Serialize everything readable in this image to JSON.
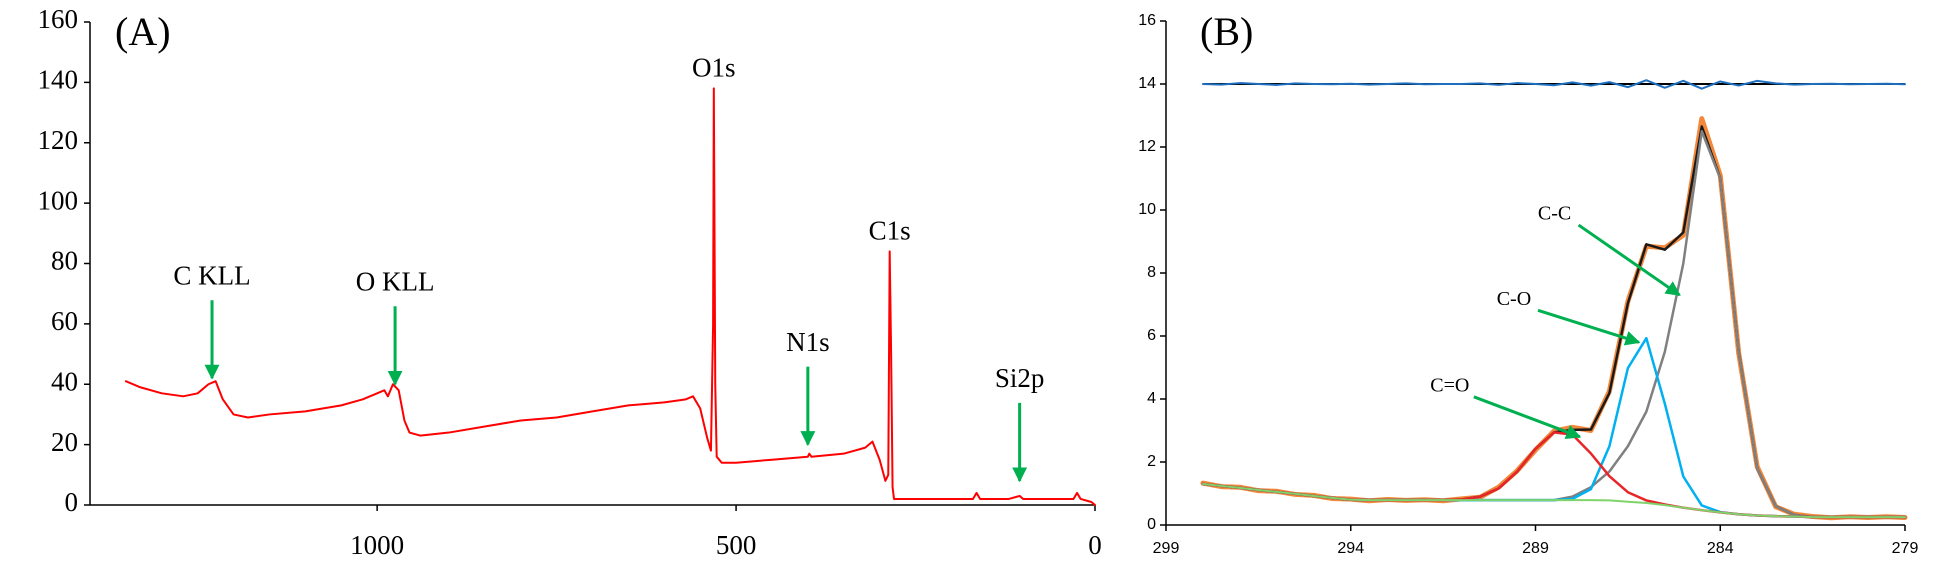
{
  "chart_data": [
    {
      "type": "line",
      "panel_label": "(A)",
      "xlim": [
        1400,
        0
      ],
      "xticks": [
        1000,
        500,
        0
      ],
      "ylim": [
        0,
        160
      ],
      "yticks": [
        0,
        20,
        40,
        60,
        80,
        100,
        120,
        140,
        160
      ],
      "x": [
        1350,
        1330,
        1300,
        1270,
        1250,
        1235,
        1225,
        1215,
        1200,
        1180,
        1150,
        1100,
        1050,
        1020,
        1000,
        990,
        985,
        978,
        970,
        962,
        955,
        940,
        900,
        850,
        800,
        750,
        700,
        650,
        600,
        570,
        560,
        550,
        540,
        535,
        532,
        531,
        529,
        527,
        520,
        500,
        450,
        400,
        398,
        395,
        350,
        320,
        310,
        300,
        292,
        288,
        286,
        284,
        282,
        280,
        250,
        200,
        170,
        165,
        160,
        120,
        105,
        100,
        60,
        30,
        25,
        20,
        5,
        0
      ],
      "series": [
        {
          "color": "#ff0000",
          "values": [
            41,
            39,
            37,
            36,
            37,
            40,
            41,
            35,
            30,
            29,
            30,
            31,
            33,
            35,
            37,
            38,
            36,
            40,
            38,
            28,
            24,
            23,
            24,
            26,
            28,
            29,
            31,
            33,
            34,
            35,
            36,
            32,
            22,
            18,
            60,
            138,
            40,
            16,
            14,
            14,
            15,
            16,
            17,
            16,
            17,
            19,
            21,
            15,
            8,
            10,
            84,
            50,
            6,
            2,
            2,
            2,
            2,
            4,
            2,
            2,
            3,
            2,
            2,
            2,
            4,
            2,
            1,
            0
          ]
        }
      ],
      "annotation_color": "#00b050",
      "annotations": [
        {
          "text": "C KLL",
          "x": 1230,
          "y": 42,
          "arrow": true
        },
        {
          "text": "O KLL",
          "x": 975,
          "y": 40,
          "arrow": true
        },
        {
          "text": "O1s",
          "x": 531,
          "y": 138,
          "arrow": false
        },
        {
          "text": "N1s",
          "x": 400,
          "y": 20,
          "arrow": true
        },
        {
          "text": "C1s",
          "x": 286,
          "y": 84,
          "arrow": false
        },
        {
          "text": "Si2p",
          "x": 105,
          "y": 8,
          "arrow": true
        }
      ]
    },
    {
      "type": "line",
      "panel_label": "(B)",
      "xlim": [
        299,
        279
      ],
      "xticks": [
        299,
        294,
        289,
        284,
        279
      ],
      "ylim": [
        0,
        16
      ],
      "yticks": [
        0,
        2,
        4,
        6,
        8,
        10,
        12,
        14,
        16
      ],
      "hline": 14,
      "hline_color": "#000000",
      "x": [
        298,
        297.5,
        297,
        296.5,
        296,
        295.5,
        295,
        294.5,
        294,
        293.5,
        293,
        292.5,
        292,
        291.5,
        291,
        290.5,
        290,
        289.5,
        289,
        288.5,
        288,
        287.5,
        287,
        286.5,
        286,
        285.5,
        285,
        284.5,
        284,
        283.5,
        283,
        282.5,
        282,
        281.5,
        281,
        280.5,
        280,
        279.5,
        279
      ],
      "series": [
        {
          "color": "#f4883a",
          "width": 5,
          "values": [
            1.33,
            1.22,
            1.2,
            1.09,
            1.07,
            0.97,
            0.94,
            0.84,
            0.82,
            0.77,
            0.81,
            0.78,
            0.8,
            0.77,
            0.83,
            0.88,
            1.2,
            1.72,
            2.38,
            2.98,
            3.1,
            3.0,
            4.25,
            7.1,
            8.85,
            8.8,
            9.2,
            12.9,
            11.1,
            5.45,
            1.85,
            0.58,
            0.34,
            0.27,
            0.23,
            0.26,
            0.24,
            0.26,
            0.24
          ]
        },
        {
          "color": "#1a1a1a",
          "width": 2.5,
          "values": [
            1.3,
            1.24,
            1.18,
            1.11,
            1.05,
            0.99,
            0.92,
            0.86,
            0.8,
            0.79,
            0.79,
            0.79,
            0.79,
            0.79,
            0.81,
            0.9,
            1.16,
            1.69,
            2.42,
            2.94,
            3.02,
            3.03,
            4.19,
            7.04,
            8.91,
            8.74,
            9.29,
            12.65,
            11.01,
            5.5,
            1.8,
            0.6,
            0.32,
            0.25,
            0.25,
            0.25,
            0.25,
            0.25,
            0.25
          ]
        },
        {
          "color": "#808080",
          "width": 2.5,
          "values": [
            1.3,
            1.24,
            1.18,
            1.11,
            1.05,
            0.99,
            0.92,
            0.86,
            0.8,
            0.79,
            0.79,
            0.79,
            0.79,
            0.79,
            0.79,
            0.79,
            0.79,
            0.79,
            0.79,
            0.79,
            0.9,
            1.2,
            1.7,
            2.5,
            3.6,
            5.5,
            8.3,
            12.5,
            11.0,
            5.5,
            1.8,
            0.6,
            0.32,
            0.25,
            0.25,
            0.25,
            0.25,
            0.25,
            0.25
          ]
        },
        {
          "color": "#00b0f0",
          "width": 2.5,
          "values": [
            1.3,
            1.24,
            1.18,
            1.11,
            1.05,
            0.99,
            0.92,
            0.86,
            0.8,
            0.79,
            0.79,
            0.79,
            0.79,
            0.79,
            0.79,
            0.79,
            0.79,
            0.79,
            0.79,
            0.79,
            0.83,
            1.14,
            2.5,
            4.98,
            5.93,
            3.85,
            1.54,
            0.62,
            0.41,
            0.34,
            0.3,
            0.28,
            0.27,
            0.25,
            0.25,
            0.25,
            0.25,
            0.25,
            0.25
          ]
        },
        {
          "color": "#e8262a",
          "width": 2.5,
          "values": [
            1.3,
            1.24,
            1.18,
            1.11,
            1.05,
            0.99,
            0.92,
            0.86,
            0.8,
            0.79,
            0.79,
            0.79,
            0.79,
            0.79,
            0.81,
            0.9,
            1.16,
            1.69,
            2.42,
            2.94,
            2.87,
            2.27,
            1.55,
            1.04,
            0.78,
            0.65,
            0.55,
            0.47,
            0.4,
            0.34,
            0.3,
            0.28,
            0.27,
            0.25,
            0.25,
            0.25,
            0.25,
            0.25,
            0.25
          ]
        },
        {
          "color": "#7ed36b",
          "width": 2,
          "values": [
            1.3,
            1.24,
            1.18,
            1.11,
            1.05,
            0.99,
            0.92,
            0.86,
            0.8,
            0.79,
            0.79,
            0.79,
            0.79,
            0.79,
            0.79,
            0.79,
            0.79,
            0.79,
            0.79,
            0.79,
            0.79,
            0.79,
            0.78,
            0.74,
            0.7,
            0.63,
            0.55,
            0.47,
            0.4,
            0.34,
            0.3,
            0.28,
            0.27,
            0.25,
            0.25,
            0.25,
            0.25,
            0.25,
            0.25
          ]
        },
        {
          "color": "#1f6fc0",
          "width": 2,
          "values": [
            14.0,
            13.98,
            14.03,
            14.0,
            13.97,
            14.02,
            14.0,
            13.99,
            14.01,
            13.98,
            14.0,
            14.02,
            13.99,
            14.0,
            14.0,
            14.02,
            13.97,
            14.03,
            14.0,
            13.96,
            14.05,
            13.95,
            14.06,
            13.9,
            14.12,
            13.88,
            14.1,
            13.85,
            14.08,
            13.95,
            14.1,
            14.02,
            13.98,
            14.0,
            14.01,
            13.99,
            14.0,
            14.01,
            13.99
          ]
        }
      ],
      "annotation_color": "#00b050",
      "annotations": [
        {
          "text": "C-C",
          "x": 285.1,
          "y": 7.3,
          "arrow": true
        },
        {
          "text": "C-O",
          "x": 286.2,
          "y": 5.8,
          "arrow": true
        },
        {
          "text": "C=O",
          "x": 287.8,
          "y": 2.8,
          "arrow": true
        }
      ]
    }
  ]
}
